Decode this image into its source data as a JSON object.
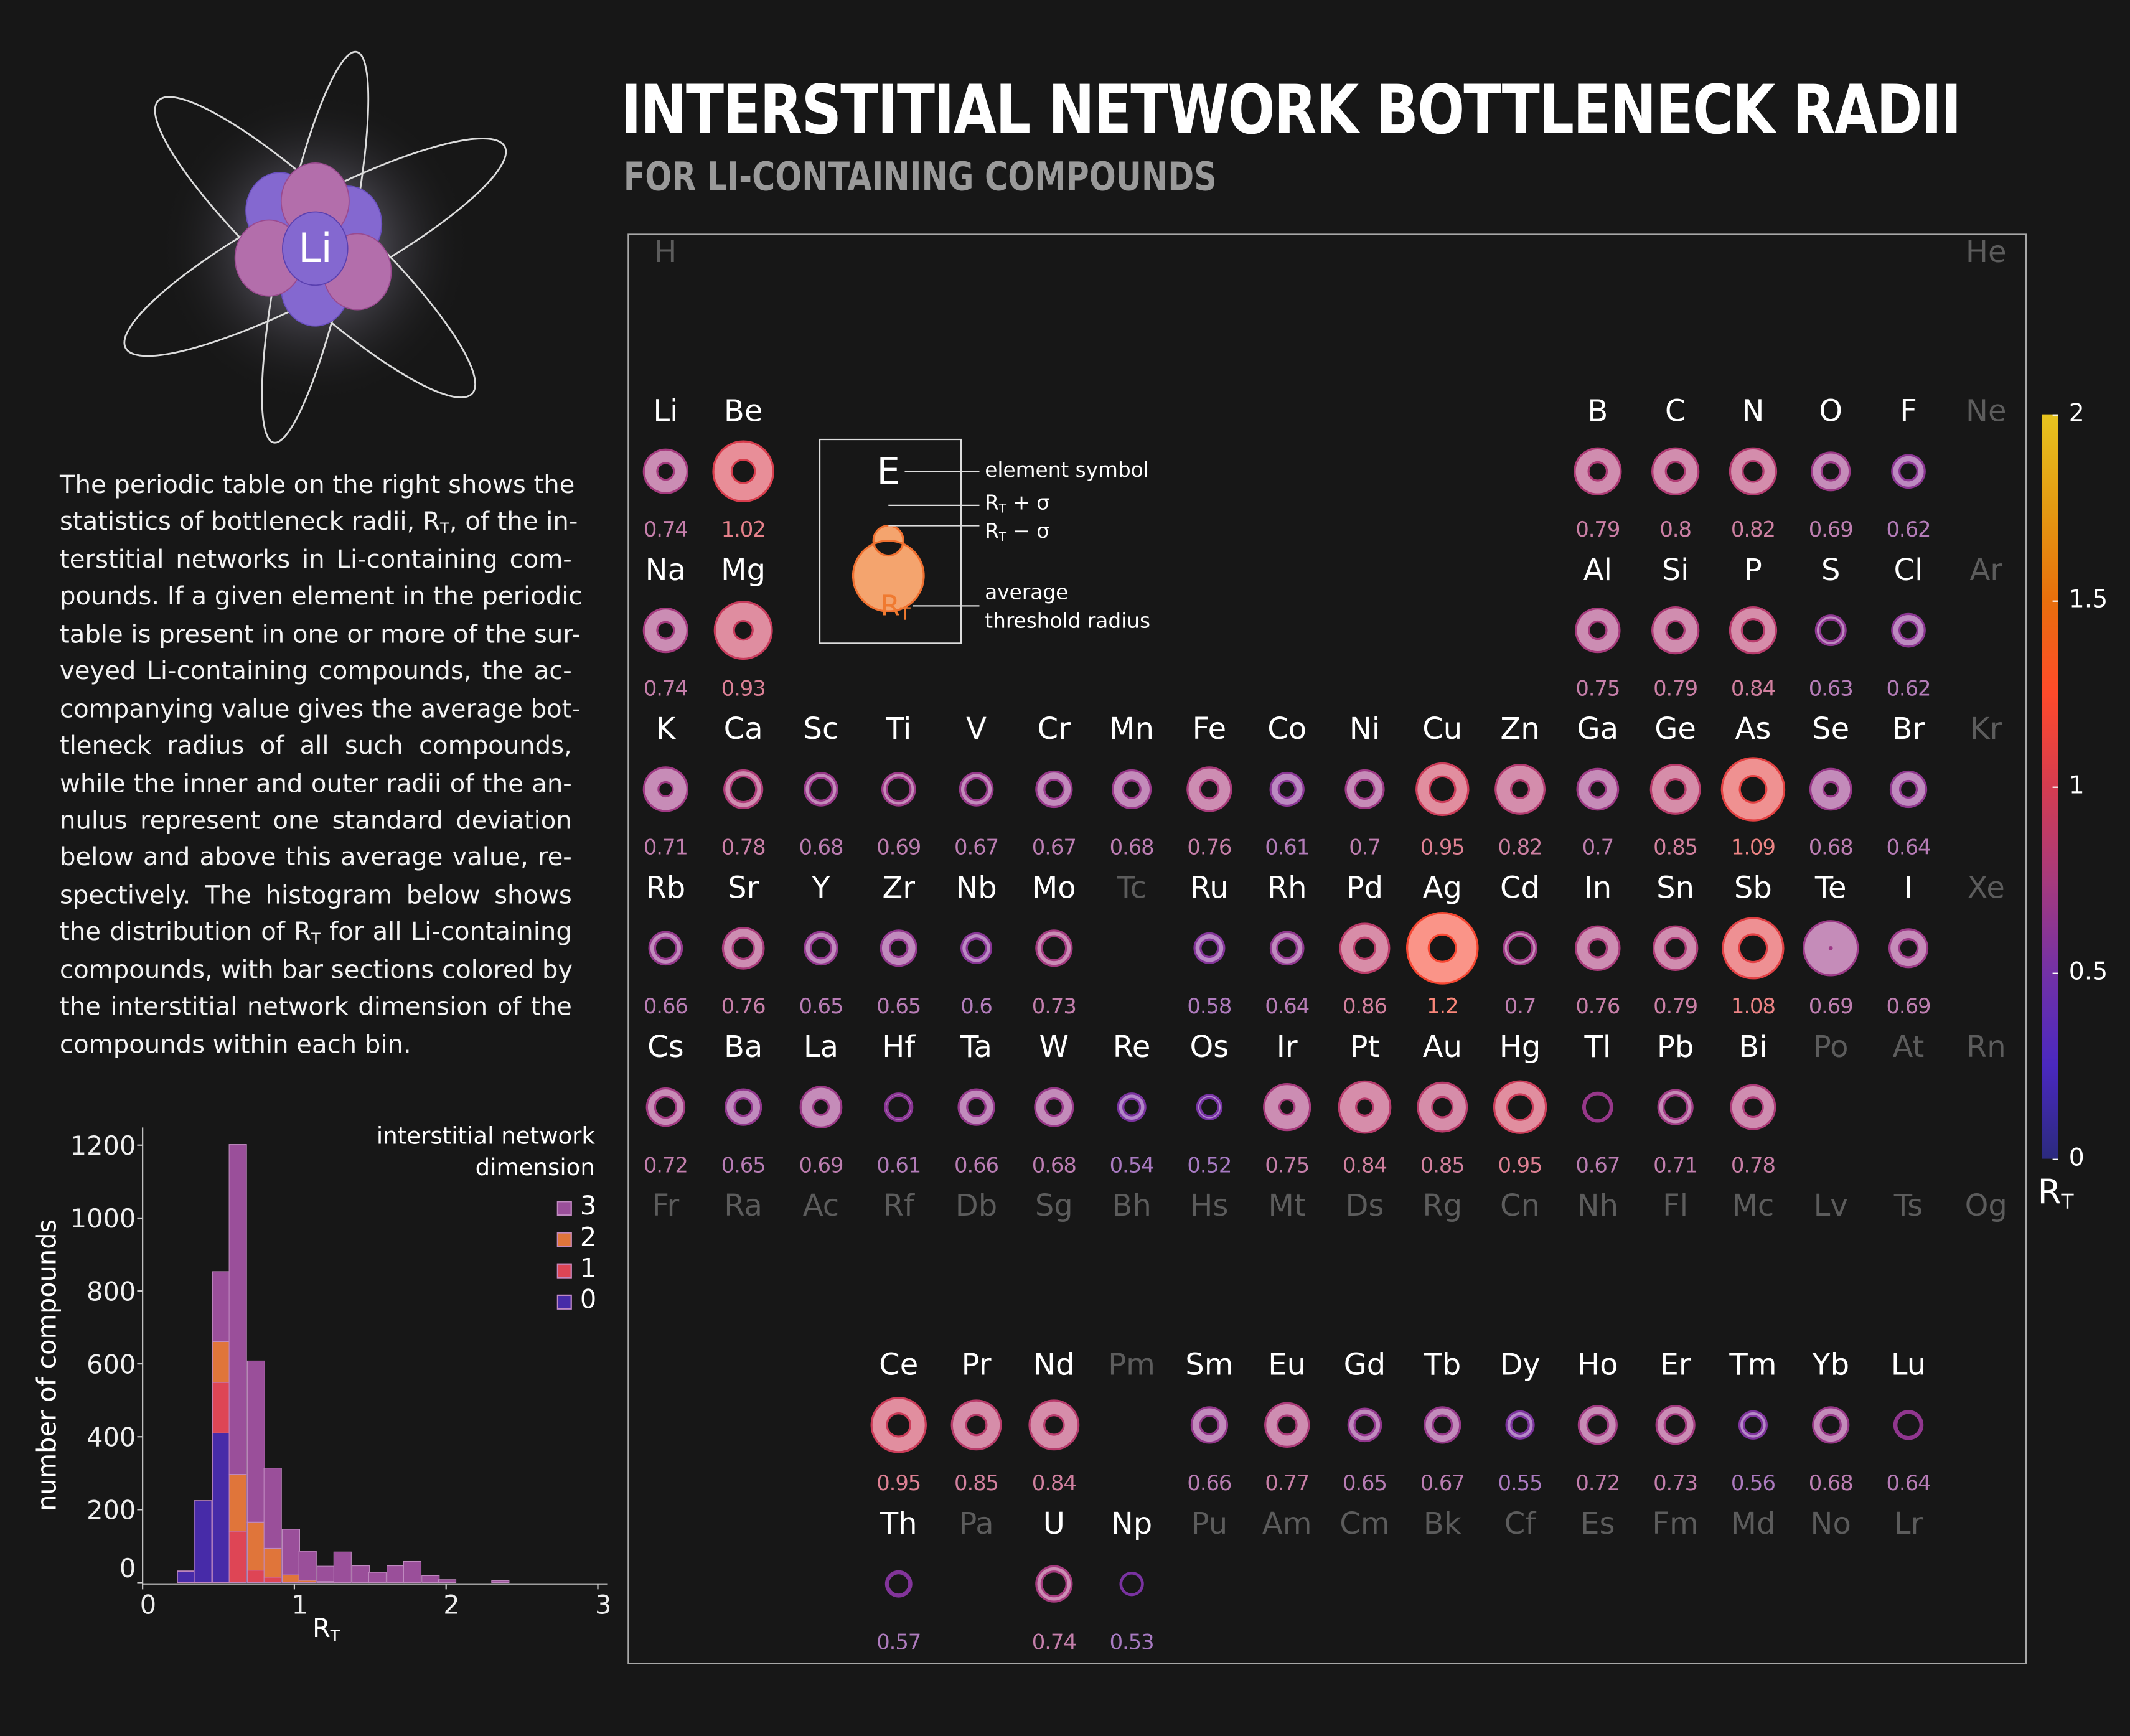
{
  "header": {
    "title": "INTERSTITIAL NETWORK BOTTLENECK RADII",
    "subtitle": "FOR LI-CONTAINING COMPOUNDS"
  },
  "logo": {
    "symbol": "Li",
    "nucleus_colors": [
      "#8468d0",
      "#b36eab"
    ]
  },
  "description": {
    "lines": [
      {
        "a": "The periodic table on the right shows the"
      },
      {
        "a": "statistics of bottleneck radii, R",
        "sub": "T",
        "b": ", of the in-"
      },
      {
        "a": "terstitial networks in Li-containing com-"
      },
      {
        "a": "pounds. If a given element in the periodic"
      },
      {
        "a": "table is present in one or more of the sur-"
      },
      {
        "a": "veyed Li-containing compounds, the ac-"
      },
      {
        "a": "companying value gives the average bot-"
      },
      {
        "a": "tleneck radius of all such compounds,"
      },
      {
        "a": "while the inner and outer radii of the an-"
      },
      {
        "a": "nulus represent one standard deviation"
      },
      {
        "a": "below and above this average value, re-"
      },
      {
        "a": "spectively. The histogram below shows"
      },
      {
        "a": "the distribution of R",
        "sub": "T",
        "b": " for all Li-containing"
      },
      {
        "a": "compounds, with bar sections colored by"
      },
      {
        "a": "the interstitial network dimension of the"
      },
      {
        "a": "compounds within each bin."
      }
    ]
  },
  "key": {
    "symbol": "E",
    "value_label": "R",
    "value_sub": "T",
    "labels": {
      "element_symbol": "element symbol",
      "plus_sigma": "R",
      "plus_sigma_sub": "T",
      "plus_sigma_rest": " + σ",
      "minus_sigma": "R",
      "minus_sigma_sub": "T",
      "minus_sigma_rest": " − σ",
      "average": "average",
      "threshold": "threshold radius"
    },
    "color": "#f07a30"
  },
  "colorbar": {
    "ticks": [
      "2",
      "1.5",
      "1",
      "0.5",
      "0"
    ],
    "label": "R",
    "label_sub": "T",
    "range": [
      0,
      2
    ],
    "stops": [
      "#2b2a7e",
      "#4a28c0",
      "#7331a6",
      "#a73a7c",
      "#d53c50",
      "#ff4a2a",
      "#e86f0c",
      "#e39a12",
      "#e6c31f"
    ]
  },
  "table": {
    "elements": [
      {
        "symbol": "H"
      },
      {
        "symbol": "He"
      },
      {
        "symbol": "Li",
        "rt": 0.74,
        "sigma": 0.33
      },
      {
        "symbol": "Be",
        "rt": 1.02,
        "sigma": 0.45
      },
      {
        "symbol": "B",
        "rt": 0.79,
        "sigma": 0.34
      },
      {
        "symbol": "C",
        "rt": 0.8,
        "sigma": 0.33
      },
      {
        "symbol": "N",
        "rt": 0.82,
        "sigma": 0.31
      },
      {
        "symbol": "O",
        "rt": 0.69,
        "sigma": 0.24
      },
      {
        "symbol": "F",
        "rt": 0.62,
        "sigma": 0.18
      },
      {
        "symbol": "Ne"
      },
      {
        "symbol": "Na",
        "rt": 0.74,
        "sigma": 0.33
      },
      {
        "symbol": "Mg",
        "rt": 0.93,
        "sigma": 0.47
      },
      {
        "symbol": "Al",
        "rt": 0.75,
        "sigma": 0.32
      },
      {
        "symbol": "Si",
        "rt": 0.79,
        "sigma": 0.34
      },
      {
        "symbol": "P",
        "rt": 0.84,
        "sigma": 0.29
      },
      {
        "symbol": "S",
        "rt": 0.63,
        "sigma": 0.1
      },
      {
        "symbol": "Cl",
        "rt": 0.62,
        "sigma": 0.18
      },
      {
        "symbol": "Ar"
      },
      {
        "symbol": "K",
        "rt": 0.71,
        "sigma": 0.36
      },
      {
        "symbol": "Ca",
        "rt": 0.78,
        "sigma": 0.15
      },
      {
        "symbol": "Sc",
        "rt": 0.68,
        "sigma": 0.12
      },
      {
        "symbol": "Ti",
        "rt": 0.69,
        "sigma": 0.11
      },
      {
        "symbol": "V",
        "rt": 0.67,
        "sigma": 0.13
      },
      {
        "symbol": "Cr",
        "rt": 0.67,
        "sigma": 0.2
      },
      {
        "symbol": "Mn",
        "rt": 0.68,
        "sigma": 0.25
      },
      {
        "symbol": "Fe",
        "rt": 0.76,
        "sigma": 0.31
      },
      {
        "symbol": "Co",
        "rt": 0.61,
        "sigma": 0.2
      },
      {
        "symbol": "Ni",
        "rt": 0.7,
        "sigma": 0.23
      },
      {
        "symbol": "Cu",
        "rt": 0.95,
        "sigma": 0.32
      },
      {
        "symbol": "Zn",
        "rt": 0.82,
        "sigma": 0.38
      },
      {
        "symbol": "Ga",
        "rt": 0.7,
        "sigma": 0.3
      },
      {
        "symbol": "Ge",
        "rt": 0.85,
        "sigma": 0.35
      },
      {
        "symbol": "As",
        "rt": 1.09,
        "sigma": 0.44
      },
      {
        "symbol": "Se",
        "rt": 0.68,
        "sigma": 0.32
      },
      {
        "symbol": "Br",
        "rt": 0.64,
        "sigma": 0.23
      },
      {
        "symbol": "Kr"
      },
      {
        "symbol": "Rb",
        "rt": 0.66,
        "sigma": 0.14
      },
      {
        "symbol": "Sr",
        "rt": 0.76,
        "sigma": 0.24
      },
      {
        "symbol": "Y",
        "rt": 0.65,
        "sigma": 0.15
      },
      {
        "symbol": "Zr",
        "rt": 0.65,
        "sigma": 0.22
      },
      {
        "symbol": "Nb",
        "rt": 0.6,
        "sigma": 0.13
      },
      {
        "symbol": "Mo",
        "rt": 0.73,
        "sigma": 0.14
      },
      {
        "symbol": "Tc"
      },
      {
        "symbol": "Ru",
        "rt": 0.58,
        "sigma": 0.15
      },
      {
        "symbol": "Rh",
        "rt": 0.64,
        "sigma": 0.16
      },
      {
        "symbol": "Pd",
        "rt": 0.86,
        "sigma": 0.34
      },
      {
        "symbol": "Ag",
        "rt": 1.2,
        "sigma": 0.53
      },
      {
        "symbol": "Cd",
        "rt": 0.7,
        "sigma": 0.1
      },
      {
        "symbol": "In",
        "rt": 0.76,
        "sigma": 0.31
      },
      {
        "symbol": "Sn",
        "rt": 0.79,
        "sigma": 0.28
      },
      {
        "symbol": "Sb",
        "rt": 1.08,
        "sigma": 0.4
      },
      {
        "symbol": "Te",
        "rt": 0.69,
        "sigma": 0.64
      },
      {
        "symbol": "I",
        "rt": 0.69,
        "sigma": 0.24
      },
      {
        "symbol": "Xe"
      },
      {
        "symbol": "Cs",
        "rt": 0.72,
        "sigma": 0.2
      },
      {
        "symbol": "Ba",
        "rt": 0.65,
        "sigma": 0.22
      },
      {
        "symbol": "La",
        "rt": 0.69,
        "sigma": 0.31
      },
      {
        "symbol": "Hf",
        "rt": 0.61,
        "sigma": 0.06
      },
      {
        "symbol": "Ta",
        "rt": 0.66,
        "sigma": 0.21
      },
      {
        "symbol": "W",
        "rt": 0.68,
        "sigma": 0.25
      },
      {
        "symbol": "Re",
        "rt": 0.54,
        "sigma": 0.13
      },
      {
        "symbol": "Os",
        "rt": 0.52,
        "sigma": 0.08
      },
      {
        "symbol": "Ir",
        "rt": 0.75,
        "sigma": 0.38
      },
      {
        "symbol": "Pt",
        "rt": 0.84,
        "sigma": 0.42
      },
      {
        "symbol": "Au",
        "rt": 0.85,
        "sigma": 0.35
      },
      {
        "symbol": "Hg",
        "rt": 0.95,
        "sigma": 0.32
      },
      {
        "symbol": "Tl",
        "rt": 0.67,
        "sigma": 0.04
      },
      {
        "symbol": "Pb",
        "rt": 0.71,
        "sigma": 0.13
      },
      {
        "symbol": "Bi",
        "rt": 0.78,
        "sigma": 0.3
      },
      {
        "symbol": "Po"
      },
      {
        "symbol": "At"
      },
      {
        "symbol": "Rn"
      },
      {
        "symbol": "Fr"
      },
      {
        "symbol": "Ra"
      },
      {
        "symbol": "Ac"
      },
      {
        "symbol": "Rf"
      },
      {
        "symbol": "Db"
      },
      {
        "symbol": "Sg"
      },
      {
        "symbol": "Bh"
      },
      {
        "symbol": "Hs"
      },
      {
        "symbol": "Mt"
      },
      {
        "symbol": "Ds"
      },
      {
        "symbol": "Rg"
      },
      {
        "symbol": "Cn"
      },
      {
        "symbol": "Nh"
      },
      {
        "symbol": "Fl"
      },
      {
        "symbol": "Mc"
      },
      {
        "symbol": "Lv"
      },
      {
        "symbol": "Ts"
      },
      {
        "symbol": "Og"
      },
      {
        "symbol": "Ce",
        "rt": 0.95,
        "sigma": 0.38
      },
      {
        "symbol": "Pr",
        "rt": 0.85,
        "sigma": 0.35
      },
      {
        "symbol": "Nd",
        "rt": 0.84,
        "sigma": 0.36
      },
      {
        "symbol": "Pm"
      },
      {
        "symbol": "Sm",
        "rt": 0.66,
        "sigma": 0.21
      },
      {
        "symbol": "Eu",
        "rt": 0.77,
        "sigma": 0.3
      },
      {
        "symbol": "Gd",
        "rt": 0.65,
        "sigma": 0.15
      },
      {
        "symbol": "Tb",
        "rt": 0.67,
        "sigma": 0.2
      },
      {
        "symbol": "Dy",
        "rt": 0.55,
        "sigma": 0.12
      },
      {
        "symbol": "Ho",
        "rt": 0.72,
        "sigma": 0.21
      },
      {
        "symbol": "Er",
        "rt": 0.73,
        "sigma": 0.2
      },
      {
        "symbol": "Tm",
        "rt": 0.56,
        "sigma": 0.11
      },
      {
        "symbol": "Yb",
        "rt": 0.68,
        "sigma": 0.19
      },
      {
        "symbol": "Lu",
        "rt": 0.64,
        "sigma": 0.05
      },
      {
        "symbol": "Th",
        "rt": 0.57,
        "sigma": 0.05
      },
      {
        "symbol": "Pa"
      },
      {
        "symbol": "U",
        "rt": 0.74,
        "sigma": 0.13
      },
      {
        "symbol": "Np",
        "rt": 0.53,
        "sigma": 0.02
      },
      {
        "symbol": "Pu"
      },
      {
        "symbol": "Am"
      },
      {
        "symbol": "Cm"
      },
      {
        "symbol": "Bk"
      },
      {
        "symbol": "Cf"
      },
      {
        "symbol": "Es"
      },
      {
        "symbol": "Fm"
      },
      {
        "symbol": "Md"
      },
      {
        "symbol": "No"
      },
      {
        "symbol": "Lr"
      }
    ]
  },
  "chart_data": {
    "type": "bar",
    "stacked": true,
    "xlabel": "R",
    "xlabel_sub": "T",
    "ylabel": "number of compounds",
    "xlim": [
      0,
      3
    ],
    "ylim": [
      0,
      1250
    ],
    "xticks": [
      "0",
      "1",
      "2",
      "3"
    ],
    "yticks": [
      "0",
      "200",
      "400",
      "600",
      "800",
      "1000",
      "1200"
    ],
    "bin_width": 0.115,
    "bin_starts": [
      0.23,
      0.34,
      0.46,
      0.57,
      0.69,
      0.8,
      0.92,
      1.03,
      1.15,
      1.26,
      1.38,
      1.49,
      1.61,
      1.72,
      1.84,
      1.95,
      2.07,
      2.19,
      2.3
    ],
    "legend_title": [
      "interstitial network",
      "dimension"
    ],
    "legend_position": "top-right",
    "series": [
      {
        "name": "0",
        "color": "#472ba8",
        "values": [
          30,
          225,
          410,
          0,
          0,
          0,
          0,
          0,
          0,
          0,
          0,
          0,
          0,
          0,
          0,
          0,
          0,
          0,
          0
        ]
      },
      {
        "name": "1",
        "color": "#de4555",
        "values": [
          0,
          0,
          139,
          141,
          34,
          15,
          0,
          0,
          0,
          0,
          0,
          0,
          0,
          0,
          0,
          0,
          0,
          0,
          0
        ]
      },
      {
        "name": "2",
        "color": "#e0753a",
        "values": [
          0,
          0,
          112,
          156,
          132,
          79,
          21,
          6,
          3,
          0,
          0,
          0,
          0,
          0,
          0,
          0,
          0,
          0,
          0
        ]
      },
      {
        "name": "3",
        "color": "#9a4f9a",
        "values": [
          2,
          0,
          192,
          905,
          442,
          220,
          125,
          80,
          42,
          84,
          46,
          28,
          46,
          58,
          19,
          8,
          0,
          0,
          5
        ]
      }
    ]
  }
}
